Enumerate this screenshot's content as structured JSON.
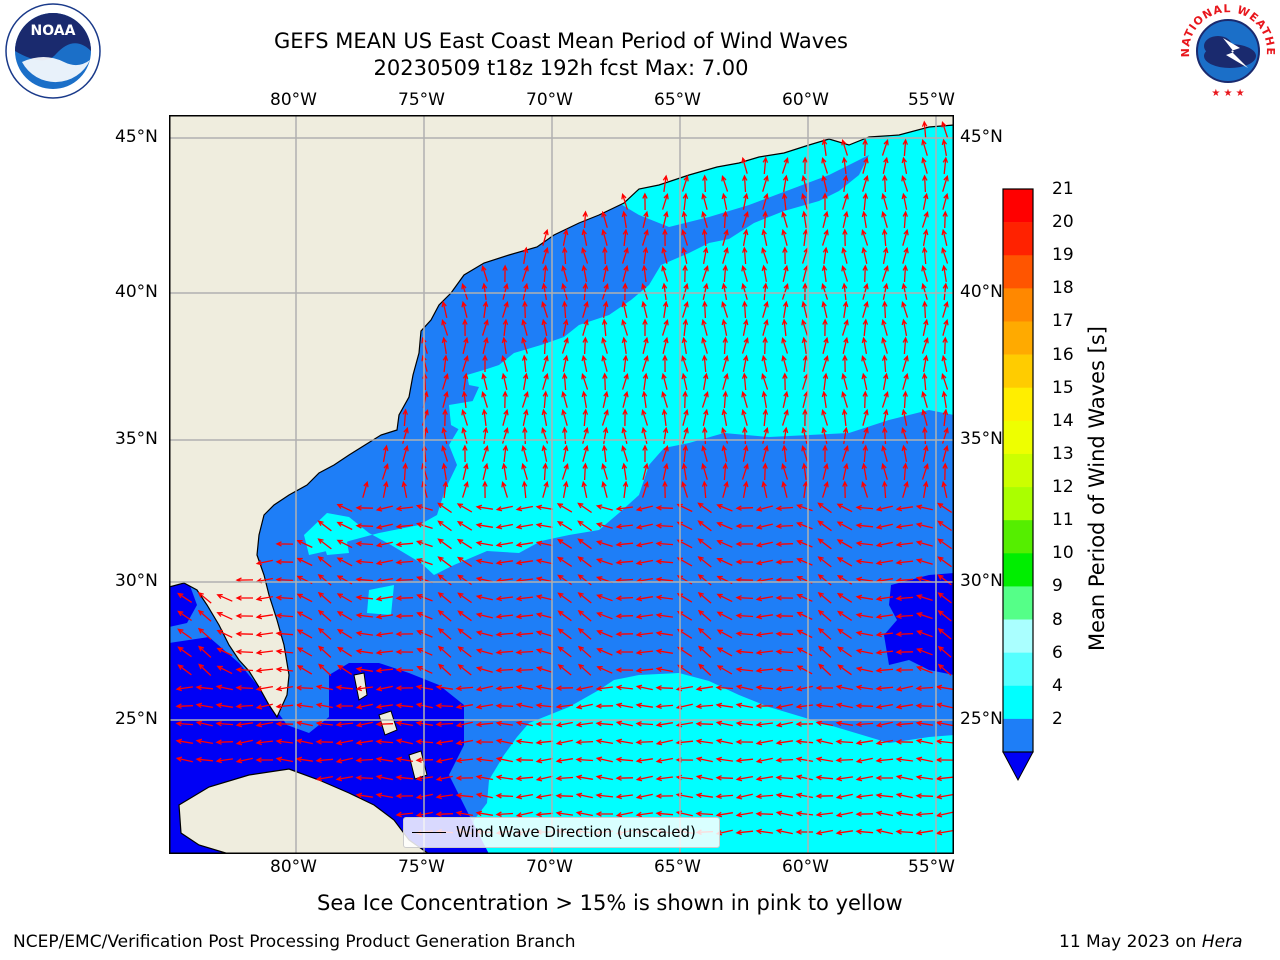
{
  "header": {
    "title_line1": "GEFS MEAN US East Coast Mean Period of Wind Waves",
    "title_line2": "20230509 t18z 192h fcst   Max: 7.00"
  },
  "logos": {
    "left": "NOAA",
    "right": "NATIONAL WEATHER SERVICE"
  },
  "map": {
    "lon_labels": [
      "80°W",
      "75°W",
      "70°W",
      "65°W",
      "60°W",
      "55°W"
    ],
    "lat_labels": [
      "45°N",
      "40°N",
      "35°N",
      "30°N",
      "25°N"
    ],
    "lon_range": [
      -85,
      -54.3
    ],
    "lat_range": [
      20.4,
      45.8
    ],
    "colors": {
      "land": "#efedde",
      "ocean_2_4": "#1e7ef7",
      "ocean_4_6": "#00ffff",
      "ocean_below_2": "#0000f5",
      "arrow": "#ff0000",
      "grid": "#b0b0b0"
    },
    "legend_label": "Wind Wave Direction (unscaled)"
  },
  "colorbar": {
    "label": "Mean Period of Wind Waves [s]",
    "ticks": [
      "21",
      "20",
      "19",
      "18",
      "17",
      "16",
      "15",
      "14",
      "13",
      "12",
      "11",
      "10",
      "9",
      "8",
      "6",
      "4",
      "2"
    ],
    "colors": [
      "#ff0000",
      "#ff2200",
      "#ff5500",
      "#ff8800",
      "#ffaa00",
      "#ffcc00",
      "#ffee00",
      "#eeff00",
      "#ccff00",
      "#aaff00",
      "#55ee00",
      "#00ee00",
      "#55ff88",
      "#aaffff",
      "#55ffff",
      "#00ffff",
      "#1e7ef7"
    ],
    "under_color": "#0000f5"
  },
  "notes": {
    "sea_ice": "Sea Ice Concentration > 15% is shown in pink to yellow",
    "credit": "NCEP/EMC/Verification Post Processing Product Generation Branch",
    "date_prefix": "11 May 2023 on ",
    "date_machine": "Hera"
  }
}
